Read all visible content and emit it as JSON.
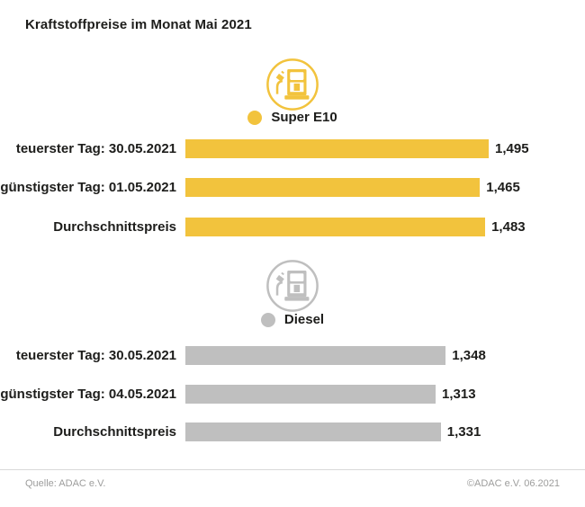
{
  "page": {
    "title": "Kraftstoffpreise im Monat Mai 2021"
  },
  "colors": {
    "super_e10": "#f2c33d",
    "diesel": "#bfbfbf",
    "text": "#1d1d1b",
    "footer_text": "#9d9d9c",
    "divider": "#d9d9d9"
  },
  "chart_data": [
    {
      "type": "bar",
      "orientation": "horizontal",
      "title": "Super E10",
      "legend_label": "Super E10",
      "icon": "fuel-pump-icon",
      "color": "#f2c33d",
      "categories": [
        "teuerster Tag: 30.05.2021",
        "günstigster Tag: 01.05.2021",
        "Durchschnittspreis"
      ],
      "values": [
        1.495,
        1.465,
        1.483
      ],
      "value_labels": [
        "1,495",
        "1,465",
        "1,483"
      ],
      "unit": "EUR/Liter",
      "grid": false,
      "legend_position": "top-center"
    },
    {
      "type": "bar",
      "orientation": "horizontal",
      "title": "Diesel",
      "legend_label": "Diesel",
      "icon": "fuel-pump-icon",
      "color": "#bfbfbf",
      "categories": [
        "teuerster Tag: 30.05.2021",
        "günstigster Tag: 04.05.2021",
        "Durchschnittspreis"
      ],
      "values": [
        1.348,
        1.313,
        1.331
      ],
      "value_labels": [
        "1,348",
        "1,313",
        "1,331"
      ],
      "unit": "EUR/Liter",
      "grid": false,
      "legend_position": "top-center"
    }
  ],
  "bar_scale": {
    "v1": 1.313,
    "w1": 278,
    "v2": 1.495,
    "w2": 337
  },
  "footer": {
    "source": "Quelle: ADAC e.V.",
    "copyright": "©ADAC e.V. 06.2021"
  }
}
